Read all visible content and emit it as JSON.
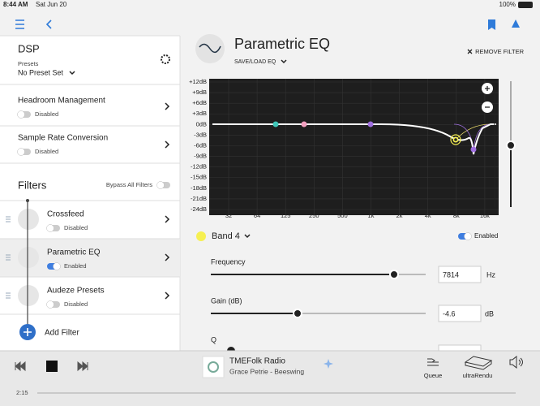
{
  "status": {
    "time": "8:44 AM",
    "date": "Sat Jun 20",
    "battery": "100%"
  },
  "sidebar": {
    "title": "DSP",
    "presets_label": "Presets",
    "preset": "No Preset Set",
    "settings": [
      {
        "name": "Headroom Management",
        "state": "Disabled"
      },
      {
        "name": "Sample Rate Conversion",
        "state": "Disabled"
      }
    ],
    "filters_title": "Filters",
    "bypass": "Bypass All Filters",
    "filters": [
      {
        "name": "Crossfeed",
        "state": "Disabled"
      },
      {
        "name": "Parametric EQ",
        "state": "Enabled"
      },
      {
        "name": "Audeze Presets",
        "state": "Disabled"
      }
    ],
    "add_filter": "Add Filter"
  },
  "editor": {
    "title": "Parametric EQ",
    "save_load": "SAVE/LOAD EQ",
    "remove": "REMOVE FILTER",
    "graph": {
      "y_labels": [
        "+12dB",
        "+9dB",
        "+6dB",
        "+3dB",
        "0dB",
        "-3dB",
        "-6dB",
        "-9dB",
        "-12dB",
        "-15dB",
        "-18dB",
        "-21dB",
        "-24dB"
      ],
      "x_labels": [
        "32",
        "64",
        "125",
        "250",
        "500",
        "1k",
        "2k",
        "4k",
        "8k",
        "16k"
      ]
    },
    "band": "Band 4",
    "band_state": "Enabled",
    "frequency_label": "Frequency",
    "frequency": "7814",
    "frequency_unit": "Hz",
    "gain_label": "Gain (dB)",
    "gain": "-4.6",
    "gain_unit": "dB",
    "q_label": "Q"
  },
  "player": {
    "station": "TMEFolk Radio",
    "track": "Grace Petrie - Beeswing",
    "queue": "Queue",
    "device": "ultraRendu",
    "elapsed": "2:15"
  }
}
